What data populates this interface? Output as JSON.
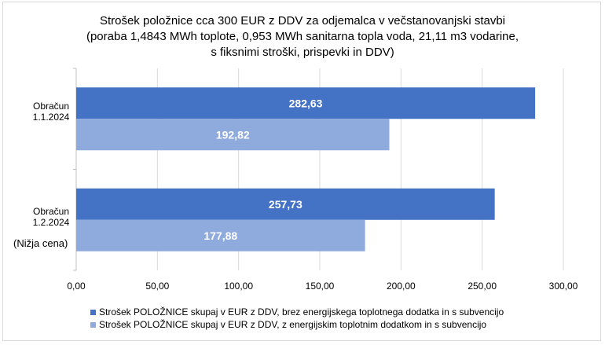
{
  "title_lines": [
    "Strošek položnice cca 300 EUR z DDV za odjemalca v večstanovanjski stavbi",
    "(poraba 1,4843 MWh toplote, 0,953 MWh sanitarna topla voda, 21,11 m3 vodarine,",
    "s fiksnimi stroški, prispevki in DDV)"
  ],
  "chart_data": {
    "type": "bar",
    "orientation": "horizontal",
    "categories": [
      {
        "line1": "Obračun",
        "line2": "1.1.2024",
        "note": ""
      },
      {
        "line1": "Obračun",
        "line2": "1.2.2024",
        "note": "(Nižja cena)"
      }
    ],
    "series": [
      {
        "name": "Strošek POLOŽNICE skupaj v EUR z DDV, brez energijskega toplotnega dodatka in s subvencijo",
        "color": "#4472c4",
        "values": [
          282.63,
          257.73
        ],
        "labels": [
          "282,63",
          "257,73"
        ]
      },
      {
        "name": "Strošek POLOŽNICE skupaj v EUR z DDV, z energijskim toplotnim dodatkom in s subvencijo",
        "color": "#8faadc",
        "values": [
          192.82,
          177.88
        ],
        "labels": [
          "192,82",
          "177,88"
        ]
      }
    ],
    "xlim": [
      0,
      300
    ],
    "xticks": [
      "0,00",
      "50,00",
      "100,00",
      "150,00",
      "200,00",
      "250,00",
      "300,00"
    ],
    "grid": true,
    "legend_position": "bottom"
  }
}
